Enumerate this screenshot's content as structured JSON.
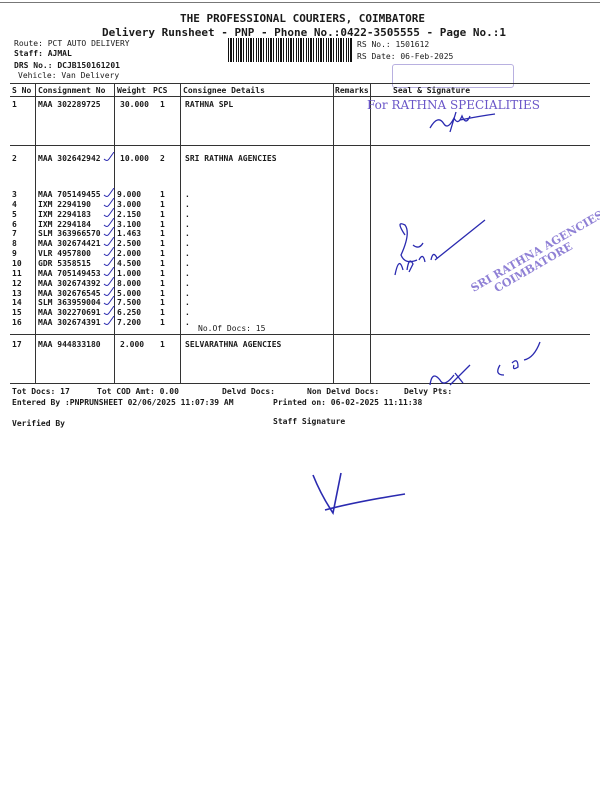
{
  "header": {
    "company": "THE PROFESSIONAL COURIERS, COIMBATORE",
    "subtitle": "Delivery Runsheet - PNP - Phone No.:0422-3505555 - Page No.:1",
    "route": "Route: PCT AUTO DELIVERY",
    "staff": "Staff: AJMAL",
    "drs_no": "DRS No.: DCJB150161201",
    "vehicle": "Vehicle: Van Delivery",
    "rs_no": "RS No.: 1501612",
    "rs_date": "RS Date: 06-Feb-2025"
  },
  "table": {
    "columns": [
      "S No",
      "Consignment No",
      "Weight",
      "PCS",
      "Consignee Details",
      "Remarks",
      "Seal & Signature"
    ],
    "rows": [
      {
        "sno": "1",
        "consignment": "MAA 302289725",
        "weight": "30.000",
        "pcs": "1",
        "consignee": "RATHNA SPL"
      },
      {
        "sno": "2",
        "consignment": "MAA 302642942",
        "weight": "10.000",
        "pcs": "2",
        "consignee": "SRI RATHNA AGENCIES"
      },
      {
        "sno": "3",
        "consignment": "MAA 705149455",
        "weight": "9.000",
        "pcs": "1",
        "consignee": "."
      },
      {
        "sno": "4",
        "consignment": "IXM 2294190",
        "weight": "3.000",
        "pcs": "1",
        "consignee": "."
      },
      {
        "sno": "5",
        "consignment": "IXM 2294183",
        "weight": "2.150",
        "pcs": "1",
        "consignee": "."
      },
      {
        "sno": "6",
        "consignment": "IXM 2294184",
        "weight": "3.100",
        "pcs": "1",
        "consignee": "."
      },
      {
        "sno": "7",
        "consignment": "SLM 363966570",
        "weight": "1.463",
        "pcs": "1",
        "consignee": "."
      },
      {
        "sno": "8",
        "consignment": "MAA 302674421",
        "weight": "2.500",
        "pcs": "1",
        "consignee": "."
      },
      {
        "sno": "9",
        "consignment": "VLR 4957800",
        "weight": "2.000",
        "pcs": "1",
        "consignee": "."
      },
      {
        "sno": "10",
        "consignment": "GDR 5358515",
        "weight": "4.500",
        "pcs": "1",
        "consignee": "."
      },
      {
        "sno": "11",
        "consignment": "MAA 705149453",
        "weight": "1.000",
        "pcs": "1",
        "consignee": "."
      },
      {
        "sno": "12",
        "consignment": "MAA 302674392",
        "weight": "8.000",
        "pcs": "1",
        "consignee": "."
      },
      {
        "sno": "13",
        "consignment": "MAA 302676545",
        "weight": "5.000",
        "pcs": "1",
        "consignee": "."
      },
      {
        "sno": "14",
        "consignment": "SLM 363959004",
        "weight": "7.500",
        "pcs": "1",
        "consignee": "."
      },
      {
        "sno": "15",
        "consignment": "MAA 302270691",
        "weight": "6.250",
        "pcs": "1",
        "consignee": "."
      },
      {
        "sno": "16",
        "consignment": "MAA 302674391",
        "weight": "7.200",
        "pcs": "1",
        "consignee": "."
      },
      {
        "sno": "17",
        "consignment": "MAA 944833180",
        "weight": "2.000",
        "pcs": "1",
        "consignee": "SELVARATHNA AGENCIES"
      }
    ],
    "group_docs": "No.Of Docs: 15"
  },
  "stamps": {
    "stamp1": "For RATHNA SPECIALITIES",
    "stamp2_line1": "SRI RATHNA AGENCIES",
    "stamp2_line2": "COIMBATORE",
    "handwritten_date": "6/2/25"
  },
  "footer": {
    "tot_docs": "Tot Docs:  17",
    "tot_cod": "Tot COD Amt:    0.00",
    "delvd_docs": "Delvd Docs:",
    "non_delvd_docs": "Non Delvd Docs:",
    "delvy_pts": "Delvy Pts:",
    "entered_by": "Entered By :PNPRUNSHEET 02/06/2025 11:07:39 AM",
    "printed_on": "Printed on: 06-02-2025 11:11:38",
    "verified_by": "Verified By",
    "staff_signature": "Staff Signature"
  },
  "colors": {
    "ink": "#1a1a1a",
    "stamp": "#6a56c8",
    "pen": "#2a2ab0"
  }
}
